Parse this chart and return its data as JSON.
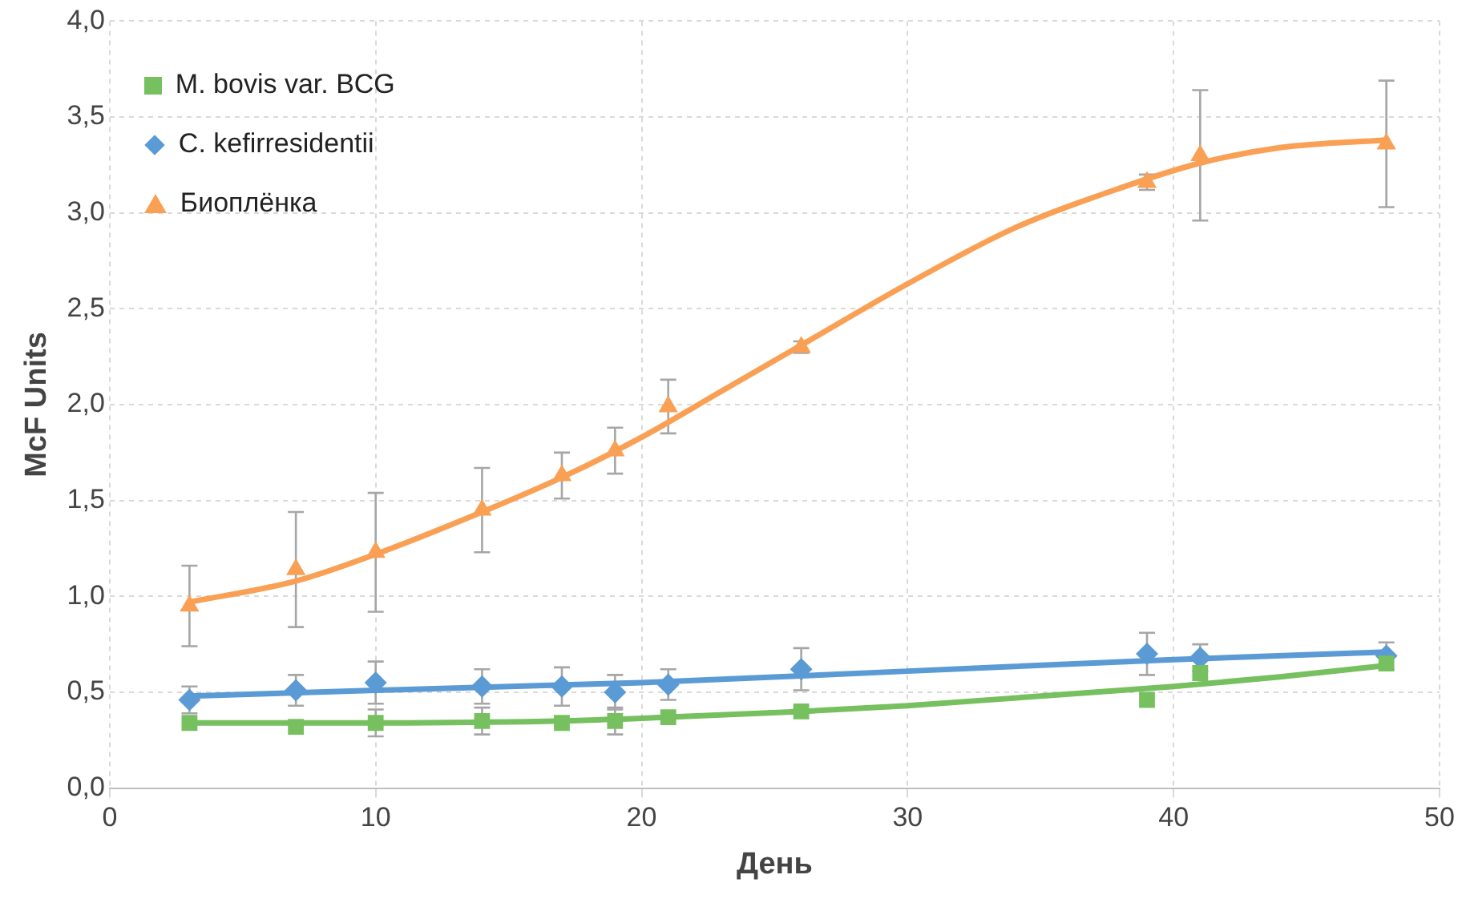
{
  "chart_data": {
    "type": "scatter",
    "xlabel": "День",
    "ylabel": "McF Units",
    "xlim": [
      0,
      50
    ],
    "xticks": [
      0,
      10,
      20,
      30,
      40,
      50
    ],
    "ylim": [
      0,
      4
    ],
    "yticks": [
      {
        "value": 0,
        "label": "0,0"
      },
      {
        "value": 0.5,
        "label": "0,5"
      },
      {
        "value": 1,
        "label": "1,0"
      },
      {
        "value": 1.5,
        "label": "1,5"
      },
      {
        "value": 2,
        "label": "2,0"
      },
      {
        "value": 2.5,
        "label": "2,5"
      },
      {
        "value": 3,
        "label": "3,0"
      },
      {
        "value": 3.5,
        "label": "3,5"
      },
      {
        "value": 4,
        "label": "4,0"
      }
    ],
    "grid": true,
    "legend": "top left",
    "series": [
      {
        "name": "M. bovis var. BCG",
        "type": "scatter",
        "marker": "square",
        "color": "#77c05f",
        "x": [
          3,
          7,
          10,
          14,
          17,
          19,
          21,
          26,
          39,
          41,
          48
        ],
        "values": [
          0.34,
          0.32,
          0.34,
          0.35,
          0.34,
          0.35,
          0.37,
          0.4,
          0.46,
          0.6,
          0.65
        ],
        "errors": [
          null,
          null,
          0.07,
          0.07,
          null,
          0.07,
          null,
          null,
          null,
          null,
          null
        ]
      },
      {
        "name": "C. kefirresidentii",
        "type": "scatter",
        "marker": "diamond",
        "color": "#5b9bd5",
        "x": [
          3,
          7,
          10,
          14,
          17,
          19,
          21,
          26,
          39,
          41,
          48
        ],
        "values": [
          0.46,
          0.51,
          0.55,
          0.53,
          0.53,
          0.5,
          0.54,
          0.62,
          0.7,
          0.68,
          0.69
        ],
        "errors": [
          0.07,
          0.08,
          0.11,
          0.09,
          0.1,
          0.09,
          0.08,
          0.11,
          0.11,
          0.07,
          0.07
        ]
      },
      {
        "name": "Биоплёнка",
        "type": "scatter",
        "marker": "triangle",
        "color": "#f9a055",
        "x": [
          3,
          7,
          10,
          14,
          17,
          19,
          21,
          26,
          39,
          41,
          48
        ],
        "values": [
          0.95,
          1.14,
          1.23,
          1.45,
          1.63,
          1.76,
          1.99,
          2.3,
          3.16,
          3.3,
          3.36
        ],
        "errors": [
          0.21,
          0.3,
          0.31,
          0.22,
          0.12,
          0.12,
          0.14,
          0.03,
          0.04,
          0.34,
          0.33
        ]
      },
      {
        "type": "line",
        "marker": "none",
        "color": "#77c05f",
        "x": [
          3,
          10,
          17,
          21,
          26,
          30,
          35,
          40,
          44,
          48
        ],
        "values": [
          0.34,
          0.34,
          0.35,
          0.37,
          0.4,
          0.43,
          0.48,
          0.53,
          0.58,
          0.64
        ]
      },
      {
        "type": "line",
        "marker": "none",
        "color": "#5b9bd5",
        "x": [
          3,
          10,
          20,
          30,
          40,
          48
        ],
        "values": [
          0.48,
          0.51,
          0.55,
          0.61,
          0.67,
          0.71
        ]
      },
      {
        "type": "line",
        "marker": "none",
        "color": "#f9a055",
        "x": [
          3,
          7,
          10,
          14,
          17,
          20,
          23,
          26,
          30,
          34,
          38,
          41,
          44,
          48
        ],
        "values": [
          0.97,
          1.08,
          1.22,
          1.44,
          1.62,
          1.83,
          2.07,
          2.31,
          2.63,
          2.92,
          3.13,
          3.26,
          3.34,
          3.38
        ]
      }
    ]
  }
}
